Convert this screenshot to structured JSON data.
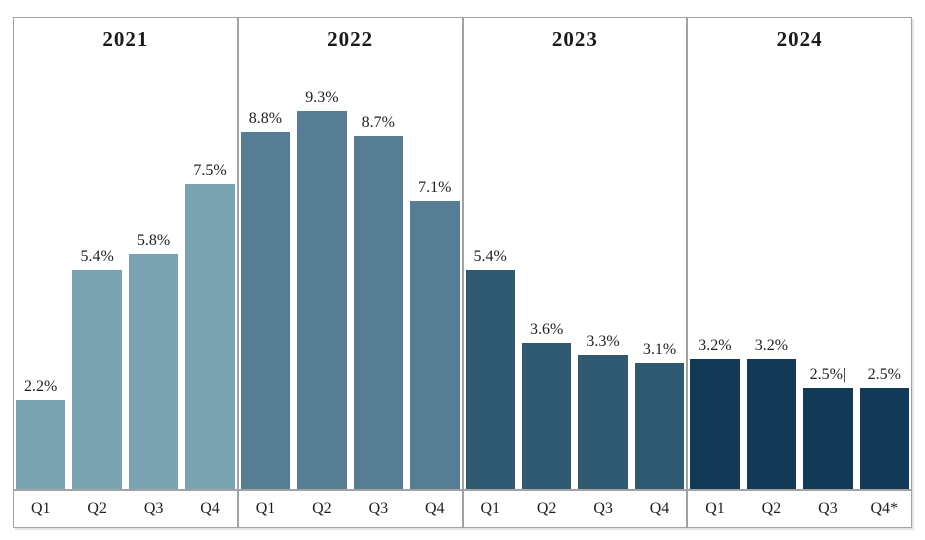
{
  "chart_data": {
    "type": "bar",
    "title": "",
    "xlabel": "",
    "ylabel": "",
    "ylim": [
      0,
      11.6
    ],
    "grid": false,
    "legend": "none",
    "value_suffix": "%",
    "groups": [
      {
        "year": "2021",
        "bar_color": "#7ba4b2",
        "quarters": [
          {
            "label": "Q1",
            "value": 2.2,
            "display": "2.2%"
          },
          {
            "label": "Q2",
            "value": 5.4,
            "display": "5.4%"
          },
          {
            "label": "Q3",
            "value": 5.8,
            "display": "5.8%"
          },
          {
            "label": "Q4",
            "value": 7.5,
            "display": "7.5%"
          }
        ]
      },
      {
        "year": "2022",
        "bar_color": "#567d94",
        "quarters": [
          {
            "label": "Q1",
            "value": 8.8,
            "display": "8.8%"
          },
          {
            "label": "Q2",
            "value": 9.3,
            "display": "9.3%"
          },
          {
            "label": "Q3",
            "value": 8.7,
            "display": "8.7%"
          },
          {
            "label": "Q4",
            "value": 7.1,
            "display": "7.1%"
          }
        ]
      },
      {
        "year": "2023",
        "bar_color": "#305a72",
        "quarters": [
          {
            "label": "Q1",
            "value": 5.4,
            "display": "5.4%"
          },
          {
            "label": "Q2",
            "value": 3.6,
            "display": "3.6%"
          },
          {
            "label": "Q3",
            "value": 3.3,
            "display": "3.3%"
          },
          {
            "label": "Q4",
            "value": 3.1,
            "display": "3.1%"
          }
        ]
      },
      {
        "year": "2024",
        "bar_color": "#123a57",
        "quarters": [
          {
            "label": "Q1",
            "value": 3.2,
            "display": "3.2%"
          },
          {
            "label": "Q2",
            "value": 3.2,
            "display": "3.2%"
          },
          {
            "label": "Q3",
            "value": 2.5,
            "display": "2.5%|"
          },
          {
            "label": "Q4*",
            "value": 2.5,
            "display": "2.5%"
          }
        ]
      }
    ],
    "colors": {
      "frame_border": "#a2a2a2",
      "label_text": "#1f1f1f",
      "background": "#ffffff"
    }
  }
}
